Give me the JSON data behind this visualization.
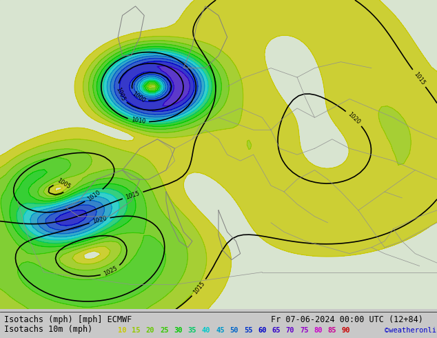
{
  "title_line1": "Isotachs (mph) [mph] ECMWF",
  "title_line2": "Fr 07-06-2024 00:00 UTC (12+84)",
  "legend_label": "Isotachs 10m (mph)",
  "copyright": "©weatheronline.co.uk",
  "legend_values": [
    10,
    15,
    20,
    25,
    30,
    35,
    40,
    45,
    50,
    55,
    60,
    65,
    70,
    75,
    80,
    85,
    90
  ],
  "legend_colors": [
    "#c8c800",
    "#96c800",
    "#64c800",
    "#32c800",
    "#00c800",
    "#00c864",
    "#00c8c8",
    "#0096c8",
    "#0064c8",
    "#0032c8",
    "#0000c8",
    "#3200c8",
    "#6400c8",
    "#9600c8",
    "#c800c8",
    "#c80096",
    "#c80000"
  ],
  "bg_color": "#e8e8e8",
  "map_bg": "#d4e8c8",
  "sea_color": "#c8d8e8",
  "contour_color": "#000000",
  "figsize": [
    6.34,
    4.9
  ],
  "dpi": 100
}
